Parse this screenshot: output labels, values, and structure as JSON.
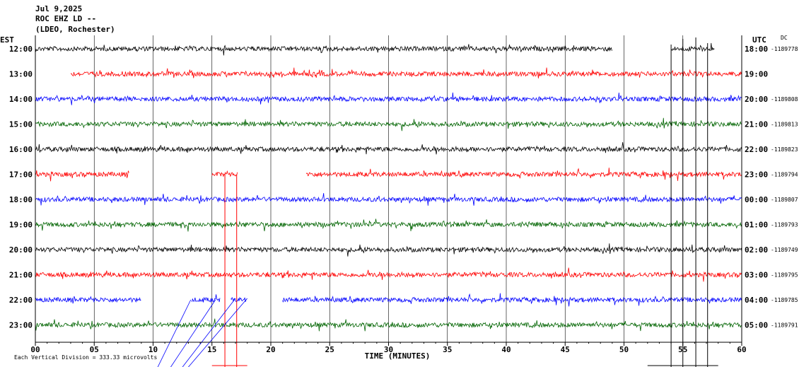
{
  "header": {
    "date": "Jul 9,2025",
    "station": "ROC EHZ LD --",
    "network": "(LDEO, Rochester)"
  },
  "left_axis_label": "EST",
  "right_axis_label": "UTC",
  "right_top_note": "DC",
  "footer_note": "Each Vertical Division =  333.33 microvolts",
  "chart_data": {
    "type": "line",
    "title": "",
    "xlabel": "TIME (MINUTES)",
    "xlim": [
      0,
      60
    ],
    "x_ticks": [
      "00",
      "05",
      "10",
      "15",
      "20",
      "25",
      "30",
      "35",
      "40",
      "45",
      "50",
      "55",
      "60"
    ],
    "grid": "vertical lines every minute 0-60",
    "trace_colors": [
      "#000000",
      "#ff0000",
      "#0000ff",
      "#006400"
    ],
    "rows": [
      {
        "est": "12:00",
        "utc": "18:00",
        "dc": "-1189778",
        "color": "#000000",
        "segments": [
          [
            0,
            49
          ],
          [
            54,
            57.7
          ]
        ]
      },
      {
        "est": "13:00",
        "utc": "19:00",
        "dc": "",
        "color": "#ff0000",
        "segments": [
          [
            3,
            60
          ]
        ]
      },
      {
        "est": "14:00",
        "utc": "20:00",
        "dc": "-1189808",
        "color": "#0000ff",
        "segments": [
          [
            0,
            60
          ]
        ]
      },
      {
        "est": "15:00",
        "utc": "21:00",
        "dc": "-1189813",
        "color": "#006400",
        "segments": [
          [
            0,
            60
          ]
        ]
      },
      {
        "est": "16:00",
        "utc": "22:00",
        "dc": "-1189823",
        "color": "#000000",
        "segments": [
          [
            0,
            60
          ]
        ]
      },
      {
        "est": "17:00",
        "utc": "23:00",
        "dc": "-1189794",
        "color": "#ff0000",
        "segments": [
          [
            0,
            8
          ],
          [
            15,
            17.2
          ],
          [
            23,
            60
          ]
        ]
      },
      {
        "est": "18:00",
        "utc": "00:00",
        "dc": "-1189807",
        "color": "#0000ff",
        "segments": [
          [
            0,
            60
          ]
        ]
      },
      {
        "est": "19:00",
        "utc": "01:00",
        "dc": "-1189793",
        "color": "#006400",
        "segments": [
          [
            0,
            60
          ]
        ]
      },
      {
        "est": "20:00",
        "utc": "02:00",
        "dc": "-1189749",
        "color": "#000000",
        "segments": [
          [
            0,
            60
          ]
        ]
      },
      {
        "est": "21:00",
        "utc": "03:00",
        "dc": "-1189795",
        "color": "#ff0000",
        "segments": [
          [
            0,
            60
          ]
        ]
      },
      {
        "est": "22:00",
        "utc": "04:00",
        "dc": "-1189785",
        "color": "#0000ff",
        "segments": [
          [
            0,
            9
          ],
          [
            13.3,
            15.7
          ],
          [
            16.6,
            18
          ],
          [
            21,
            60
          ]
        ]
      },
      {
        "est": "23:00",
        "utc": "05:00",
        "dc": "-1189791",
        "color": "#006400",
        "segments": [
          [
            0,
            60
          ]
        ]
      }
    ]
  }
}
